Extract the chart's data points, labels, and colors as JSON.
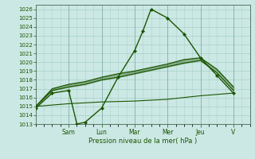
{
  "xlabel": "Pression niveau de la mer( hPa )",
  "ylim": [
    1013,
    1026.5
  ],
  "yticks": [
    1013,
    1014,
    1015,
    1016,
    1017,
    1018,
    1019,
    1020,
    1021,
    1022,
    1023,
    1024,
    1025,
    1026
  ],
  "day_labels": [
    "Sam",
    "Lun",
    "Mar",
    "Mer",
    "Jeu",
    "V"
  ],
  "day_positions": [
    24,
    48,
    72,
    96,
    120,
    144
  ],
  "xlim": [
    0,
    156
  ],
  "bg_color": "#cce8e4",
  "grid_color": "#aad4cc",
  "line_color": "#1a5500",
  "marker_color": "#1a5500",
  "s1_x": [
    0,
    12,
    24,
    30,
    36,
    48,
    60,
    72,
    78,
    84,
    96,
    108,
    120,
    132,
    144
  ],
  "s1_y": [
    1014.8,
    1016.5,
    1016.8,
    1013.0,
    1013.2,
    1014.8,
    1018.3,
    1021.3,
    1023.5,
    1026.0,
    1025.0,
    1023.2,
    1020.5,
    1018.5,
    1016.5
  ],
  "s2_x": [
    0,
    12,
    24,
    36,
    48,
    60,
    72,
    84,
    96,
    108,
    120,
    132,
    144
  ],
  "s2_y": [
    1015.0,
    1017.0,
    1017.5,
    1017.8,
    1018.3,
    1018.7,
    1019.0,
    1019.4,
    1019.8,
    1020.3,
    1020.5,
    1019.2,
    1017.2
  ],
  "s3_x": [
    0,
    12,
    24,
    36,
    48,
    60,
    72,
    84,
    96,
    108,
    120,
    132,
    144
  ],
  "s3_y": [
    1015.0,
    1016.8,
    1017.2,
    1017.5,
    1018.0,
    1018.3,
    1018.7,
    1019.1,
    1019.5,
    1019.9,
    1020.2,
    1018.8,
    1016.8
  ],
  "s4_x": [
    0,
    24,
    48,
    72,
    96,
    120,
    144
  ],
  "s4_y": [
    1015.0,
    1015.3,
    1015.5,
    1015.6,
    1015.8,
    1016.2,
    1016.5
  ],
  "vline_positions": [
    24,
    48,
    72,
    96,
    120,
    144
  ]
}
